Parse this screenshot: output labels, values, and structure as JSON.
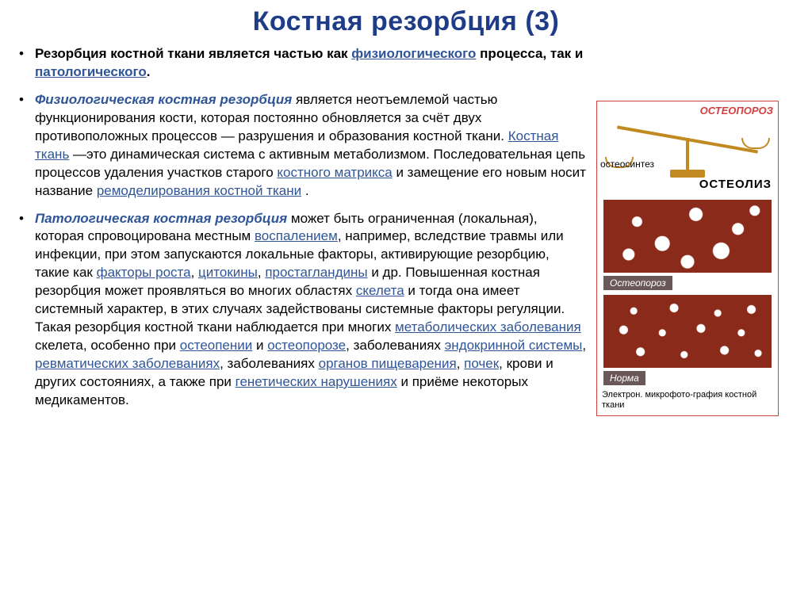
{
  "title": "Костная резорбция (3)",
  "bullets": {
    "b1_p1": "Резорбция костной ткани является частью как ",
    "b1_link1": "физиологического",
    "b1_p2": " процесса, так и ",
    "b1_link2": "патологического",
    "b1_p3": ".",
    "b2_head": "Физиологическая костная резорбция",
    "b2_p1": " является неотъемлемой частью функционирования кости, которая постоянно обновляется за счёт двух противоположных процессов — разрушения и образования костной ткани. ",
    "b2_link1": "Костная ткань",
    "b2_p2": " —это динамическая система с активным метаболизмом. Последовательная цепь процессов удаления участков старого ",
    "b2_link2": "костного матрикса",
    "b2_p3": " и замещение его новым носит название ",
    "b2_link3": "ремоделирования костной ткани",
    "b2_p4": " .",
    "b3_head": "Патологическая костная резорбция",
    "b3_p1": " может быть ограниченная (локальная), которая спровоцирована местным ",
    "b3_link1": "воспалением",
    "b3_p2": ", например, вследствие травмы или инфекции, при этом запускаются локальные факторы, активирующие резорбцию, такие как ",
    "b3_link2": "факторы роста",
    "b3_c1": ", ",
    "b3_link3": "цитокины",
    "b3_c2": ", ",
    "b3_link4": "простагландины",
    "b3_p3": " и др. Повышенная костная резорбция может проявляться во многих областях ",
    "b3_link5": "скелета",
    "b3_p4": " и тогда она имеет системный характер, в этих случаях задействованы системные факторы регуляции. Такая резорбция костной ткани наблюдается при многих ",
    "b3_link6": "метаболических заболевания",
    "b3_p5": " скелета, особенно при ",
    "b3_link7": "остеопении",
    "b3_p6": " и ",
    "b3_link8": "остеопорозе",
    "b3_p7": ", заболеваниях ",
    "b3_link9": "эндокринной системы",
    "b3_c3": ", ",
    "b3_link10": "ревматических заболеваниях",
    "b3_p8": ", заболеваниях ",
    "b3_link11": "органов пищеварения",
    "b3_c4": ", ",
    "b3_link12": "почек",
    "b3_p9": ", крови и других состояниях, а также при ",
    "b3_link13": "генетических нарушениях",
    "b3_p10": " и приёме некоторых медикаментов."
  },
  "diagram": {
    "top_label": "ОСТЕОПОРОЗ",
    "left_label": "остеосинтез",
    "right_label": "ОСТЕОЛИЗ",
    "box1_label": "Остеопороз",
    "box2_label": "Норма",
    "caption": "Электрон. микрофото-графия костной ткани"
  },
  "colors": {
    "title": "#1f3c88",
    "link": "#2f5597",
    "text": "#000000",
    "border": "#d04040",
    "balance": "#c08a20",
    "bone": "#8a2a1a",
    "label_bg": "#6a5858"
  }
}
